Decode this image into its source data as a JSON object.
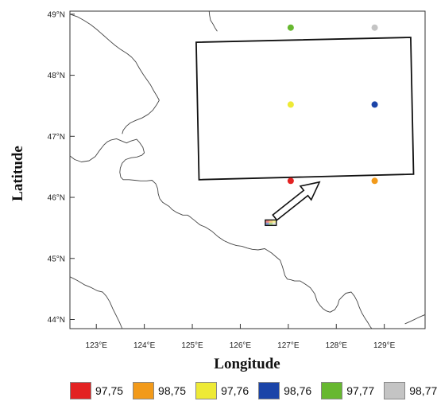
{
  "map": {
    "axes": {
      "xlabel": "Longitude",
      "ylabel": "Latitude",
      "xlim": [
        122.45,
        129.85
      ],
      "ylim": [
        43.85,
        49.05
      ],
      "x_ticks": [
        123,
        124,
        125,
        126,
        127,
        128,
        129
      ],
      "x_tick_labels": [
        "123°E",
        "124°E",
        "125°E",
        "126°E",
        "127°E",
        "128°E",
        "129°E"
      ],
      "y_ticks": [
        44,
        45,
        46,
        47,
        48,
        49
      ],
      "y_tick_labels": [
        "44°N",
        "45°N",
        "46°N",
        "47°N",
        "48°N",
        "49°N"
      ]
    },
    "points": [
      {
        "lon": 127.05,
        "lat": 46.27,
        "color": "#e32222",
        "label": "97,75"
      },
      {
        "lon": 128.8,
        "lat": 46.27,
        "color": "#f29a1a",
        "label": "98,75"
      },
      {
        "lon": 127.05,
        "lat": 47.52,
        "color": "#eeea36",
        "label": "97,76"
      },
      {
        "lon": 128.8,
        "lat": 47.52,
        "color": "#1b44a8",
        "label": "98,76"
      },
      {
        "lon": 127.05,
        "lat": 48.78,
        "color": "#67b830",
        "label": "97,77"
      },
      {
        "lon": 128.8,
        "lat": 48.78,
        "color": "#c4c4c4",
        "label": "98,77"
      }
    ],
    "zoom_box_corners": [
      [
        125.08,
        48.54
      ],
      [
        129.55,
        48.62
      ],
      [
        129.61,
        46.38
      ],
      [
        125.14,
        46.29
      ]
    ],
    "study_marker": {
      "lon_min": 126.52,
      "lon_max": 126.75,
      "lat_min": 45.54,
      "lat_max": 45.63
    },
    "arrow": {
      "from": [
        126.72,
        45.67
      ],
      "to": [
        127.65,
        46.25
      ]
    },
    "boundaries": [
      [
        [
          122.45,
          46.68
        ],
        [
          122.55,
          46.62
        ],
        [
          122.69,
          46.58
        ],
        [
          122.85,
          46.6
        ],
        [
          122.98,
          46.67
        ],
        [
          123.06,
          46.76
        ],
        [
          123.16,
          46.86
        ],
        [
          123.23,
          46.91
        ],
        [
          123.31,
          46.94
        ],
        [
          123.42,
          46.96
        ],
        [
          123.51,
          46.93
        ],
        [
          123.63,
          46.89
        ],
        [
          123.71,
          46.92
        ],
        [
          123.84,
          46.95
        ],
        [
          123.9,
          46.9
        ],
        [
          123.97,
          46.82
        ],
        [
          124.0,
          46.73
        ],
        [
          123.95,
          46.69
        ],
        [
          123.84,
          46.66
        ],
        [
          123.73,
          46.65
        ],
        [
          123.61,
          46.62
        ],
        [
          123.54,
          46.56
        ],
        [
          123.5,
          46.48
        ],
        [
          123.49,
          46.41
        ],
        [
          123.51,
          46.33
        ],
        [
          123.56,
          46.29
        ],
        [
          123.68,
          46.29
        ],
        [
          123.8,
          46.28
        ],
        [
          123.92,
          46.27
        ],
        [
          124.05,
          46.27
        ],
        [
          124.16,
          46.28
        ],
        [
          124.24,
          46.22
        ],
        [
          124.28,
          46.14
        ],
        [
          124.29,
          46.06
        ],
        [
          124.32,
          45.98
        ],
        [
          124.38,
          45.92
        ],
        [
          124.44,
          45.89
        ],
        [
          124.52,
          45.85
        ],
        [
          124.58,
          45.8
        ],
        [
          124.68,
          45.75
        ],
        [
          124.8,
          45.71
        ],
        [
          124.9,
          45.71
        ],
        [
          124.97,
          45.67
        ],
        [
          125.05,
          45.62
        ],
        [
          125.16,
          45.55
        ],
        [
          125.28,
          45.51
        ],
        [
          125.4,
          45.45
        ],
        [
          125.53,
          45.36
        ],
        [
          125.66,
          45.29
        ],
        [
          125.8,
          45.24
        ],
        [
          125.92,
          45.21
        ],
        [
          126.03,
          45.2
        ],
        [
          126.14,
          45.17
        ],
        [
          126.25,
          45.15
        ],
        [
          126.37,
          45.14
        ],
        [
          126.51,
          45.16
        ],
        [
          126.65,
          45.09
        ],
        [
          126.74,
          45.03
        ],
        [
          126.83,
          44.97
        ],
        [
          126.88,
          44.86
        ],
        [
          126.93,
          44.72
        ],
        [
          126.98,
          44.66
        ],
        [
          127.05,
          44.65
        ],
        [
          127.13,
          44.63
        ],
        [
          127.25,
          44.63
        ],
        [
          127.37,
          44.57
        ],
        [
          127.46,
          44.52
        ],
        [
          127.55,
          44.42
        ],
        [
          127.6,
          44.3
        ],
        [
          127.66,
          44.23
        ],
        [
          127.72,
          44.18
        ],
        [
          127.79,
          44.14
        ],
        [
          127.87,
          44.12
        ],
        [
          127.97,
          44.16
        ],
        [
          128.03,
          44.24
        ],
        [
          128.06,
          44.32
        ],
        [
          128.12,
          44.37
        ],
        [
          128.2,
          44.43
        ],
        [
          128.31,
          44.45
        ],
        [
          128.38,
          44.38
        ],
        [
          128.44,
          44.29
        ],
        [
          128.48,
          44.2
        ],
        [
          128.53,
          44.11
        ],
        [
          128.59,
          44.03
        ],
        [
          128.65,
          43.96
        ],
        [
          128.71,
          43.88
        ],
        [
          128.74,
          43.85
        ]
      ],
      [
        [
          122.45,
          49.0
        ],
        [
          122.6,
          48.96
        ],
        [
          122.74,
          48.9
        ],
        [
          122.88,
          48.83
        ],
        [
          123.01,
          48.75
        ],
        [
          123.14,
          48.66
        ],
        [
          123.27,
          48.57
        ],
        [
          123.39,
          48.49
        ],
        [
          123.51,
          48.42
        ],
        [
          123.63,
          48.36
        ],
        [
          123.73,
          48.3
        ],
        [
          123.82,
          48.22
        ],
        [
          123.9,
          48.11
        ],
        [
          123.98,
          48.01
        ],
        [
          124.06,
          47.92
        ],
        [
          124.13,
          47.84
        ],
        [
          124.2,
          47.74
        ],
        [
          124.27,
          47.65
        ],
        [
          124.31,
          47.59
        ]
      ],
      [
        [
          124.31,
          47.59
        ],
        [
          124.26,
          47.52
        ],
        [
          124.18,
          47.43
        ],
        [
          124.08,
          47.36
        ],
        [
          123.95,
          47.3
        ],
        [
          123.82,
          47.26
        ],
        [
          123.71,
          47.22
        ],
        [
          123.63,
          47.17
        ],
        [
          123.56,
          47.1
        ],
        [
          123.54,
          47.04
        ]
      ],
      [
        [
          122.45,
          44.7
        ],
        [
          122.6,
          44.64
        ],
        [
          122.75,
          44.57
        ],
        [
          122.9,
          44.52
        ],
        [
          123.02,
          44.47
        ],
        [
          123.13,
          44.45
        ],
        [
          123.21,
          44.38
        ],
        [
          123.28,
          44.29
        ],
        [
          123.34,
          44.18
        ],
        [
          123.41,
          44.07
        ],
        [
          123.48,
          43.96
        ],
        [
          123.54,
          43.85
        ]
      ],
      [
        [
          125.35,
          49.05
        ],
        [
          125.36,
          48.98
        ],
        [
          125.38,
          48.9
        ],
        [
          125.43,
          48.84
        ],
        [
          125.47,
          48.78
        ],
        [
          125.52,
          48.72
        ]
      ],
      [
        [
          129.43,
          43.93
        ],
        [
          129.52,
          43.96
        ],
        [
          129.6,
          43.99
        ],
        [
          129.68,
          44.02
        ],
        [
          129.76,
          44.05
        ],
        [
          129.85,
          44.08
        ]
      ]
    ]
  },
  "legend": {
    "items": [
      {
        "label": "97,75",
        "color": "#e32222"
      },
      {
        "label": "98,75",
        "color": "#f29a1a"
      },
      {
        "label": "97,76",
        "color": "#eeea36"
      },
      {
        "label": "98,76",
        "color": "#1b44a8"
      },
      {
        "label": "97,77",
        "color": "#67b830"
      },
      {
        "label": "98,77",
        "color": "#c4c4c4"
      }
    ]
  }
}
